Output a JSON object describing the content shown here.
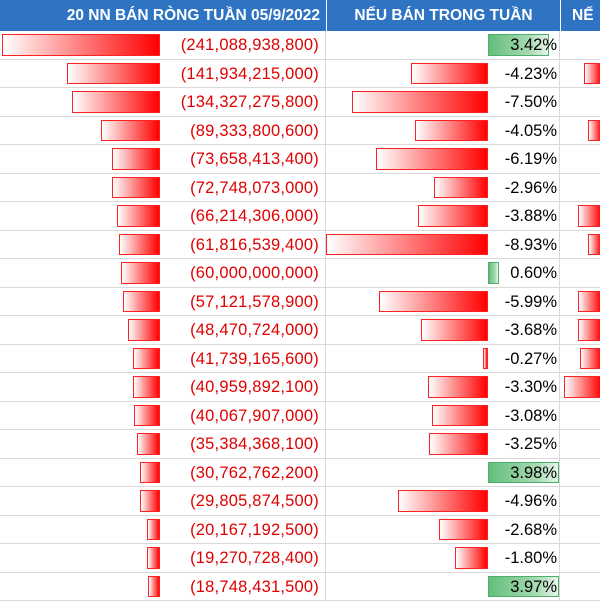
{
  "headers": {
    "col1": "20 NN BÁN RÒNG TUẦN 05/9/2022",
    "col2": "NẾU BÁN TRONG TUẦN",
    "col3": "NẾ"
  },
  "colors": {
    "header_bg": "#2e74c2",
    "negative_text": "#e00000",
    "negative_bar": "#ff0000",
    "positive_bar": "#63be7b"
  },
  "chart_data": {
    "type": "table",
    "rows": [
      {
        "net_sell": "(241,088,938,800)",
        "net_sell_value": -241088938800,
        "weekly_change": "3.42%",
        "weekly_change_value": 3.42,
        "col3_bar": 0
      },
      {
        "net_sell": "(141,934,215,000)",
        "net_sell_value": -141934215000,
        "weekly_change": "-4.23%",
        "weekly_change_value": -4.23,
        "col3_bar": 0.4
      },
      {
        "net_sell": "(134,327,275,800)",
        "net_sell_value": -134327275800,
        "weekly_change": "-7.50%",
        "weekly_change_value": -7.5,
        "col3_bar": 0
      },
      {
        "net_sell": "(89,333,800,600)",
        "net_sell_value": -89333800600,
        "weekly_change": "-4.05%",
        "weekly_change_value": -4.05,
        "col3_bar": 0.3
      },
      {
        "net_sell": "(73,658,413,400)",
        "net_sell_value": -73658413400,
        "weekly_change": "-6.19%",
        "weekly_change_value": -6.19,
        "col3_bar": 0
      },
      {
        "net_sell": "(72,748,073,000)",
        "net_sell_value": -72748073000,
        "weekly_change": "-2.96%",
        "weekly_change_value": -2.96,
        "col3_bar": 0
      },
      {
        "net_sell": "(66,214,306,000)",
        "net_sell_value": -66214306000,
        "weekly_change": "-3.88%",
        "weekly_change_value": -3.88,
        "col3_bar": 0.55
      },
      {
        "net_sell": "(61,816,539,400)",
        "net_sell_value": -61816539400,
        "weekly_change": "-8.93%",
        "weekly_change_value": -8.93,
        "col3_bar": 0.3
      },
      {
        "net_sell": "(60,000,000,000)",
        "net_sell_value": -60000000000,
        "weekly_change": "0.60%",
        "weekly_change_value": 0.6,
        "col3_bar": 0
      },
      {
        "net_sell": "(57,121,578,900)",
        "net_sell_value": -57121578900,
        "weekly_change": "-5.99%",
        "weekly_change_value": -5.99,
        "col3_bar": 0.55
      },
      {
        "net_sell": "(48,470,724,000)",
        "net_sell_value": -48470724000,
        "weekly_change": "-3.68%",
        "weekly_change_value": -3.68,
        "col3_bar": 0.55
      },
      {
        "net_sell": "(41,739,165,600)",
        "net_sell_value": -41739165600,
        "weekly_change": "-0.27%",
        "weekly_change_value": -0.27,
        "col3_bar": 0.5
      },
      {
        "net_sell": "(40,959,892,100)",
        "net_sell_value": -40959892100,
        "weekly_change": "-3.30%",
        "weekly_change_value": -3.3,
        "col3_bar": 0.9
      },
      {
        "net_sell": "(40,067,907,000)",
        "net_sell_value": -40067907000,
        "weekly_change": "-3.08%",
        "weekly_change_value": -3.08,
        "col3_bar": 0
      },
      {
        "net_sell": "(35,384,368,100)",
        "net_sell_value": -35384368100,
        "weekly_change": "-3.25%",
        "weekly_change_value": -3.25,
        "col3_bar": 0
      },
      {
        "net_sell": "(30,762,762,200)",
        "net_sell_value": -30762762200,
        "weekly_change": "3.98%",
        "weekly_change_value": 3.98,
        "col3_bar": 0
      },
      {
        "net_sell": "(29,805,874,500)",
        "net_sell_value": -29805874500,
        "weekly_change": "-4.96%",
        "weekly_change_value": -4.96,
        "col3_bar": 0
      },
      {
        "net_sell": "(20,167,192,500)",
        "net_sell_value": -20167192500,
        "weekly_change": "-2.68%",
        "weekly_change_value": -2.68,
        "col3_bar": 0
      },
      {
        "net_sell": "(19,270,728,400)",
        "net_sell_value": -19270728400,
        "weekly_change": "-1.80%",
        "weekly_change_value": -1.8,
        "col3_bar": 0
      },
      {
        "net_sell": "(18,748,431,500)",
        "net_sell_value": -18748431500,
        "weekly_change": "3.97%",
        "weekly_change_value": 3.97,
        "col3_bar": 0
      }
    ]
  }
}
